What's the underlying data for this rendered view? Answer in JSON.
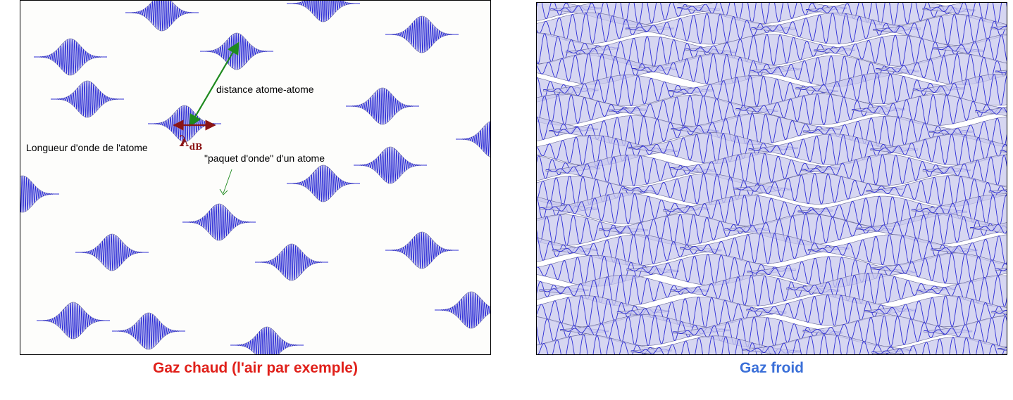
{
  "hot_gas": {
    "caption": "Gaz chaud (l'air par exemple)",
    "annotations": {
      "distance": "distance atome-atome",
      "wavelength": "Longueur d'onde de l'atome",
      "packet": "\"paquet d'onde\" d'un atome",
      "lambda": "λ",
      "lambda_subscript": "dB"
    }
  },
  "cold_gas": {
    "caption": "Gaz froid"
  },
  "colors": {
    "wave_line": "#2b2bd6",
    "wave_fill": "#c8c8ec",
    "distance_arrow": "#1e8a1e",
    "wavelength_arrow": "#8b1515",
    "hot_caption": "#e0201a",
    "cold_caption": "#3a6fd8"
  }
}
